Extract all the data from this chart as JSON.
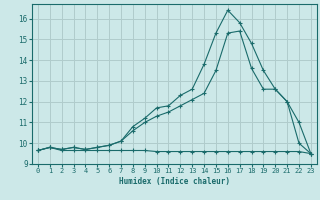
{
  "xlabel": "Humidex (Indice chaleur)",
  "xlim": [
    -0.5,
    23.5
  ],
  "ylim": [
    9,
    16.7
  ],
  "yticks": [
    9,
    10,
    11,
    12,
    13,
    14,
    15,
    16
  ],
  "xticks": [
    0,
    1,
    2,
    3,
    4,
    5,
    6,
    7,
    8,
    9,
    10,
    11,
    12,
    13,
    14,
    15,
    16,
    17,
    18,
    19,
    20,
    21,
    22,
    23
  ],
  "bg_color": "#cce8e8",
  "grid_color": "#b0cccc",
  "line_color": "#1a6b6b",
  "line1_x": [
    0,
    1,
    2,
    3,
    4,
    5,
    6,
    7,
    8,
    9,
    10,
    11,
    12,
    13,
    14,
    15,
    16,
    17,
    18,
    19,
    20,
    21,
    22,
    23
  ],
  "line1_y": [
    9.65,
    9.8,
    9.65,
    9.65,
    9.65,
    9.65,
    9.65,
    9.65,
    9.65,
    9.65,
    9.6,
    9.6,
    9.6,
    9.6,
    9.6,
    9.6,
    9.6,
    9.6,
    9.6,
    9.6,
    9.6,
    9.6,
    9.6,
    9.5
  ],
  "line2_x": [
    0,
    1,
    2,
    3,
    4,
    5,
    6,
    7,
    8,
    9,
    10,
    11,
    12,
    13,
    14,
    15,
    16,
    17,
    18,
    19,
    20,
    21,
    22,
    23
  ],
  "line2_y": [
    9.65,
    9.8,
    9.7,
    9.8,
    9.7,
    9.8,
    9.9,
    10.1,
    10.6,
    11.0,
    11.3,
    11.5,
    11.8,
    12.1,
    12.4,
    13.5,
    15.3,
    15.4,
    13.6,
    12.6,
    12.6,
    12.0,
    11.0,
    9.5
  ],
  "line3_x": [
    0,
    1,
    2,
    3,
    4,
    5,
    6,
    7,
    8,
    9,
    10,
    11,
    12,
    13,
    14,
    15,
    16,
    17,
    18,
    19,
    20,
    21,
    22,
    23
  ],
  "line3_y": [
    9.65,
    9.8,
    9.7,
    9.8,
    9.7,
    9.8,
    9.9,
    10.1,
    10.8,
    11.2,
    11.7,
    11.8,
    12.3,
    12.6,
    13.8,
    15.3,
    16.4,
    15.8,
    14.8,
    13.5,
    12.6,
    12.0,
    10.0,
    9.5
  ]
}
